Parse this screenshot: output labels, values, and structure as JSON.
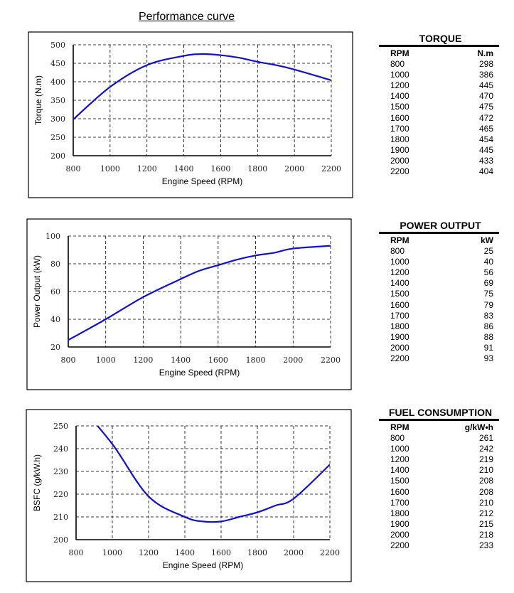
{
  "title": "Performance curve",
  "chart_data": [
    {
      "type": "line",
      "title": "",
      "xlabel": "Engine Speed (RPM)",
      "ylabel": "Torque (N.m)",
      "xlim": [
        800,
        2200
      ],
      "ylim": [
        200,
        500
      ],
      "xticks": [
        800,
        1000,
        1200,
        1400,
        1600,
        1800,
        2000,
        2200
      ],
      "yticks": [
        200,
        250,
        300,
        350,
        400,
        450,
        500
      ],
      "grid": true,
      "color": "#1010d0",
      "x": [
        800,
        1000,
        1200,
        1400,
        1500,
        1600,
        1700,
        1800,
        1900,
        2000,
        2200
      ],
      "y": [
        298,
        386,
        445,
        470,
        475,
        472,
        465,
        454,
        445,
        433,
        404
      ]
    },
    {
      "type": "line",
      "title": "",
      "xlabel": "Engine Speed (RPM)",
      "ylabel": "Power Output (kW)",
      "xlim": [
        800,
        2200
      ],
      "ylim": [
        20,
        100
      ],
      "xticks": [
        800,
        1000,
        1200,
        1400,
        1600,
        1800,
        2000,
        2200
      ],
      "yticks": [
        20,
        40,
        60,
        80,
        100
      ],
      "grid": true,
      "color": "#1010d0",
      "x": [
        800,
        1000,
        1200,
        1400,
        1500,
        1600,
        1700,
        1800,
        1900,
        2000,
        2200
      ],
      "y": [
        25,
        40,
        56,
        69,
        75,
        79,
        83,
        86,
        88,
        91,
        93
      ]
    },
    {
      "type": "line",
      "title": "",
      "xlabel": "Engine Speed (RPM)",
      "ylabel": "BSFC (g/kW.h)",
      "xlim": [
        800,
        2200
      ],
      "ylim": [
        200,
        250
      ],
      "xticks": [
        800,
        1000,
        1200,
        1400,
        1600,
        1800,
        2000,
        2200
      ],
      "yticks": [
        200,
        210,
        220,
        230,
        240,
        250
      ],
      "grid": true,
      "color": "#1010d0",
      "x": [
        800,
        1000,
        1200,
        1400,
        1500,
        1600,
        1700,
        1800,
        1900,
        2000,
        2200
      ],
      "y": [
        261,
        242,
        219,
        210,
        208,
        208,
        210,
        212,
        215,
        218,
        233
      ]
    }
  ],
  "tables": [
    {
      "title": "TORQUE",
      "headers": [
        "RPM",
        "N.m"
      ],
      "rows": [
        [
          "800",
          "298"
        ],
        [
          "1000",
          "386"
        ],
        [
          "1200",
          "445"
        ],
        [
          "1400",
          "470"
        ],
        [
          "1500",
          "475"
        ],
        [
          "1600",
          "472"
        ],
        [
          "1700",
          "465"
        ],
        [
          "1800",
          "454"
        ],
        [
          "1900",
          "445"
        ],
        [
          "2000",
          "433"
        ],
        [
          "2200",
          "404"
        ]
      ]
    },
    {
      "title": "POWER OUTPUT",
      "headers": [
        "RPM",
        "kW"
      ],
      "rows": [
        [
          "800",
          "25"
        ],
        [
          "1000",
          "40"
        ],
        [
          "1200",
          "56"
        ],
        [
          "1400",
          "69"
        ],
        [
          "1500",
          "75"
        ],
        [
          "1600",
          "79"
        ],
        [
          "1700",
          "83"
        ],
        [
          "1800",
          "86"
        ],
        [
          "1900",
          "88"
        ],
        [
          "2000",
          "91"
        ],
        [
          "2200",
          "93"
        ]
      ]
    },
    {
      "title": "FUEL CONSUMPTION",
      "headers": [
        "RPM",
        "g/kW•h"
      ],
      "rows": [
        [
          "800",
          "261"
        ],
        [
          "1000",
          "242"
        ],
        [
          "1200",
          "219"
        ],
        [
          "1400",
          "210"
        ],
        [
          "1500",
          "208"
        ],
        [
          "1600",
          "208"
        ],
        [
          "1700",
          "210"
        ],
        [
          "1800",
          "212"
        ],
        [
          "1900",
          "215"
        ],
        [
          "2000",
          "218"
        ],
        [
          "2200",
          "233"
        ]
      ]
    }
  ]
}
